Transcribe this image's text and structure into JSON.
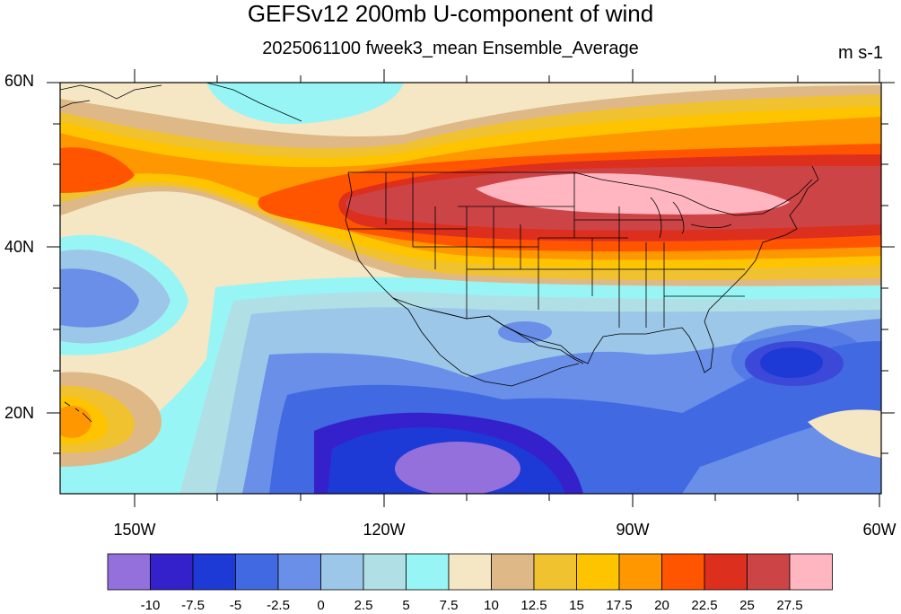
{
  "title": "GEFSv12 200mb U-component of wind",
  "subtitle": "2025061100 fweek3_mean Ensemble_Average",
  "units": "m s-1",
  "lat_labels": [
    "60N",
    "40N",
    "20N"
  ],
  "lon_labels": [
    "150W",
    "120W",
    "90W",
    "60W"
  ],
  "colorbar": {
    "colors": [
      "#9370db",
      "#3421cc",
      "#1e3ad6",
      "#4169e1",
      "#6a8fe8",
      "#9cc7e8",
      "#b0e0e6",
      "#98f5f5",
      "#f5e6c4",
      "#deb887",
      "#f0c230",
      "#ffc400",
      "#ff9800",
      "#ff5500",
      "#dc2f1e",
      "#cd4447",
      "#ffb6c1"
    ],
    "labels": [
      "-10",
      "-7.5",
      "-5",
      "-2.5",
      "0",
      "2.5",
      "5",
      "7.5",
      "10",
      "12.5",
      "15",
      "17.5",
      "20",
      "22.5",
      "25",
      "27.5"
    ]
  },
  "map_data": {
    "variable": "200mb U-component of wind",
    "lat_range": [
      10,
      60
    ],
    "lon_range": [
      -160,
      -60
    ],
    "features": [
      {
        "name": "Jet stream maximum over northern US",
        "value_range": ">27.5",
        "lat": 46,
        "lon": -95
      },
      {
        "name": "Easterly minimum south of Mexico",
        "value_range": "<-10",
        "lat": 14,
        "lon": -106
      },
      {
        "name": "Easterly minimum near Caribbean",
        "value_range": "-10 to -7.5",
        "lat": 26,
        "lon": -69
      },
      {
        "name": "Westerly maximum near Hawaii",
        "value_range": "17.5 to 20",
        "lat": 20,
        "lon": -158
      }
    ]
  }
}
